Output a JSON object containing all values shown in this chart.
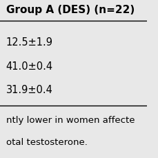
{
  "header_text": "Group A (DES) (n=22)",
  "row1": "12.5±1.9",
  "row2": "41.0±0.4",
  "row3": "31.9±0.4",
  "footnote1": "ntly lower in women affecte",
  "footnote2": "otal testosterone.",
  "bg_color": "#e8e8e8",
  "header_font_size": 11,
  "body_font_size": 10.5,
  "footnote_font_size": 9.5
}
